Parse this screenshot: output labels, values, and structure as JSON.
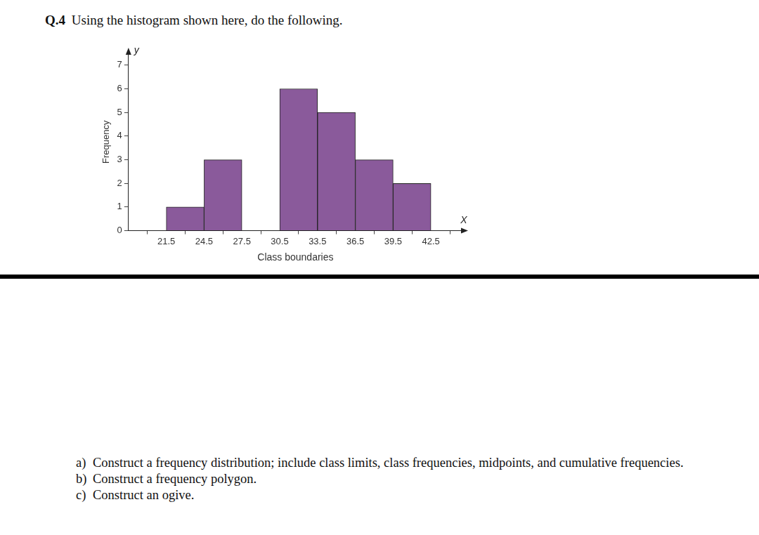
{
  "question": {
    "number": "Q.4",
    "text": "Using the histogram shown here, do the following."
  },
  "chart_data": {
    "type": "histogram",
    "bins": [
      21.5,
      24.5,
      27.5,
      30.5,
      33.5,
      36.5,
      39.5,
      42.5
    ],
    "counts": [
      1,
      3,
      0,
      6,
      5,
      3,
      2
    ],
    "color": "#8a5a9b",
    "x_label": "Class boundaries",
    "y_label": "Frequency",
    "annotations": [
      "y",
      "X"
    ],
    "xlim": [
      18.5,
      45
    ],
    "xticks": [
      21.5,
      24.5,
      27.5,
      30.5,
      33.5,
      36.5,
      39.5,
      42.5
    ],
    "ylim": [
      0,
      7.5
    ],
    "yticks": [
      0,
      1,
      2,
      3,
      4,
      5,
      6,
      7
    ],
    "grid": false
  },
  "tasks": [
    {
      "label": "a)",
      "text": "Construct a frequency distribution; include class limits, class frequencies, midpoints, and cumulative frequencies."
    },
    {
      "label": "b)",
      "text": "Construct a frequency polygon."
    },
    {
      "label": "c)",
      "text": "Construct an ogive."
    }
  ]
}
